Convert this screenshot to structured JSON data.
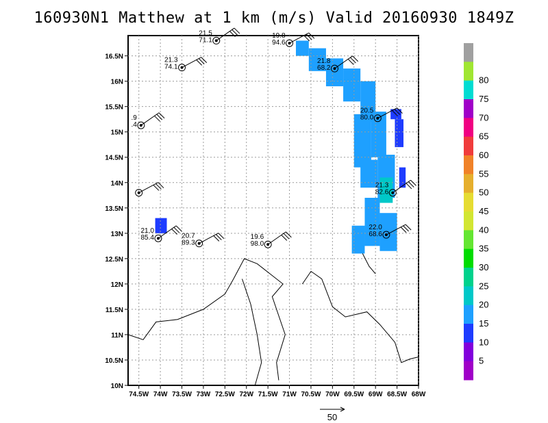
{
  "title": "160930N1 Matthew at 1 km (m/s) Valid 20160930 1849Z",
  "map": {
    "lon_range": [
      -74.75,
      -68.0
    ],
    "lat_range": [
      10.0,
      16.9
    ],
    "lon_ticks": [
      {
        "v": -74.5,
        "label": "74.5W"
      },
      {
        "v": -74.0,
        "label": "74W"
      },
      {
        "v": -73.5,
        "label": "73.5W"
      },
      {
        "v": -73.0,
        "label": "73W"
      },
      {
        "v": -72.5,
        "label": "72.5W"
      },
      {
        "v": -72.0,
        "label": "72W"
      },
      {
        "v": -71.5,
        "label": "71.5W"
      },
      {
        "v": -71.0,
        "label": "71W"
      },
      {
        "v": -70.5,
        "label": "70.5W"
      },
      {
        "v": -70.0,
        "label": "70W"
      },
      {
        "v": -69.5,
        "label": "69.5W"
      },
      {
        "v": -69.0,
        "label": "69W"
      },
      {
        "v": -68.5,
        "label": "68.5W"
      },
      {
        "v": -68.0,
        "label": "68W"
      }
    ],
    "lat_ticks": [
      {
        "v": 10.0,
        "label": "10N"
      },
      {
        "v": 10.5,
        "label": "10.5N"
      },
      {
        "v": 11.0,
        "label": "11N"
      },
      {
        "v": 11.5,
        "label": "11.5N"
      },
      {
        "v": 12.0,
        "label": "12N"
      },
      {
        "v": 12.5,
        "label": "12.5N"
      },
      {
        "v": 13.0,
        "label": "13N"
      },
      {
        "v": 13.5,
        "label": "13.5N"
      },
      {
        "v": 14.0,
        "label": "14N"
      },
      {
        "v": 14.5,
        "label": "14.5N"
      },
      {
        "v": 15.0,
        "label": "15N"
      },
      {
        "v": 15.5,
        "label": "15.5N"
      },
      {
        "v": 16.0,
        "label": "16N"
      },
      {
        "v": 16.5,
        "label": "16.5N"
      }
    ],
    "grid": true,
    "coastlines": [
      [
        [
          -74.75,
          11.0
        ],
        [
          -74.4,
          10.9
        ],
        [
          -74.1,
          11.25
        ],
        [
          -73.6,
          11.3
        ],
        [
          -73.0,
          11.5
        ],
        [
          -72.5,
          11.8
        ],
        [
          -72.3,
          12.1
        ],
        [
          -72.05,
          12.5
        ],
        [
          -71.75,
          12.4
        ],
        [
          -71.45,
          12.2
        ],
        [
          -71.15,
          12.0
        ],
        [
          -71.4,
          11.75
        ],
        [
          -71.1,
          11.0
        ],
        [
          -71.3,
          10.45
        ],
        [
          -71.25,
          10.1
        ]
      ],
      [
        [
          -71.8,
          10.0
        ],
        [
          -71.65,
          10.45
        ],
        [
          -71.75,
          11.0
        ],
        [
          -71.9,
          11.6
        ],
        [
          -72.1,
          12.1
        ]
      ],
      [
        [
          -70.7,
          12.0
        ],
        [
          -70.5,
          12.25
        ],
        [
          -70.25,
          12.1
        ],
        [
          -70.0,
          11.55
        ],
        [
          -69.7,
          11.35
        ],
        [
          -69.2,
          11.45
        ],
        [
          -68.9,
          11.2
        ],
        [
          -68.55,
          10.85
        ],
        [
          -68.4,
          10.45
        ],
        [
          -68.2,
          10.52
        ],
        [
          -68.0,
          10.56
        ]
      ],
      [
        [
          -69.3,
          12.6
        ],
        [
          -69.15,
          12.35
        ],
        [
          -69.0,
          12.2
        ]
      ]
    ],
    "vector_scale_label": "50"
  },
  "wind_field": {
    "units": "m/s",
    "swath_boxes": [
      {
        "lon": [
          -74.12,
          -73.85
        ],
        "lat": [
          13.0,
          13.3
        ],
        "speed": 12
      },
      {
        "lon": [
          -70.85,
          -70.55
        ],
        "lat": [
          16.5,
          16.8
        ],
        "speed": 18
      },
      {
        "lon": [
          -70.55,
          -70.15
        ],
        "lat": [
          16.2,
          16.65
        ],
        "speed": 17
      },
      {
        "lon": [
          -70.15,
          -69.75
        ],
        "lat": [
          15.9,
          16.45
        ],
        "speed": 17
      },
      {
        "lon": [
          -69.75,
          -69.35
        ],
        "lat": [
          15.6,
          16.25
        ],
        "speed": 16
      },
      {
        "lon": [
          -69.35,
          -69.0
        ],
        "lat": [
          15.2,
          16.0
        ],
        "speed": 17
      },
      {
        "lon": [
          -69.5,
          -69.1
        ],
        "lat": [
          14.3,
          15.35
        ],
        "speed": 16
      },
      {
        "lon": [
          -69.1,
          -68.75
        ],
        "lat": [
          14.5,
          15.4
        ],
        "speed": 17
      },
      {
        "lon": [
          -69.35,
          -68.95
        ],
        "lat": [
          13.9,
          14.45
        ],
        "speed": 16
      },
      {
        "lon": [
          -68.95,
          -68.55
        ],
        "lat": [
          13.7,
          14.55
        ],
        "speed": 17
      },
      {
        "lon": [
          -68.9,
          -68.6
        ],
        "lat": [
          13.6,
          14.1
        ],
        "speed": 22
      },
      {
        "lon": [
          -69.25,
          -68.9
        ],
        "lat": [
          12.75,
          13.7
        ],
        "speed": 16
      },
      {
        "lon": [
          -68.9,
          -68.5
        ],
        "lat": [
          12.65,
          13.4
        ],
        "speed": 17
      },
      {
        "lon": [
          -69.55,
          -69.25
        ],
        "lat": [
          12.6,
          13.15
        ],
        "speed": 15
      },
      {
        "lon": [
          -68.55,
          -68.35
        ],
        "lat": [
          14.7,
          15.25
        ],
        "speed": 11
      },
      {
        "lon": [
          -68.65,
          -68.4
        ],
        "lat": [
          15.25,
          15.45
        ],
        "speed": 11
      },
      {
        "lon": [
          -68.45,
          -68.3
        ],
        "lat": [
          13.9,
          14.3
        ],
        "speed": 13
      }
    ],
    "observations": [
      {
        "lon": -72.7,
        "lat": 16.8,
        "temp": "21.5",
        "rh": "71.1"
      },
      {
        "lon": -73.5,
        "lat": 16.27,
        "temp": "21.3",
        "rh": "74.1"
      },
      {
        "lon": -74.45,
        "lat": 15.13,
        "temp": ".9",
        "rh": ".4"
      },
      {
        "lon": -74.5,
        "lat": 13.8,
        "temp": "",
        "rh": ""
      },
      {
        "lon": -74.05,
        "lat": 12.9,
        "temp": "21.0",
        "rh": "85.4"
      },
      {
        "lon": -73.1,
        "lat": 12.8,
        "temp": "20.7",
        "rh": "89.3"
      },
      {
        "lon": -71.5,
        "lat": 12.78,
        "temp": "19.6",
        "rh": "98.0"
      },
      {
        "lon": -71.0,
        "lat": 16.75,
        "temp": "19.8",
        "rh": "94.6"
      },
      {
        "lon": -69.95,
        "lat": 16.25,
        "temp": "21.8",
        "rh": "68.2"
      },
      {
        "lon": -68.95,
        "lat": 15.27,
        "temp": "20.5",
        "rh": "80.0"
      },
      {
        "lon": -68.6,
        "lat": 13.8,
        "temp": "21.3",
        "rh": "82.6"
      },
      {
        "lon": -68.75,
        "lat": 12.97,
        "temp": "22.0",
        "rh": "68.6"
      }
    ]
  },
  "colorbar": {
    "levels": [
      {
        "label": "",
        "color": "#a0a0a0"
      },
      {
        "label": "80",
        "color": "#a0e632"
      },
      {
        "label": "75",
        "color": "#00dcd2"
      },
      {
        "label": "70",
        "color": "#a000c8"
      },
      {
        "label": "65",
        "color": "#f00082"
      },
      {
        "label": "60",
        "color": "#f03c3c"
      },
      {
        "label": "55",
        "color": "#f08228"
      },
      {
        "label": "50",
        "color": "#e6af2d"
      },
      {
        "label": "45",
        "color": "#e6dc32"
      },
      {
        "label": "40",
        "color": "#d2e632"
      },
      {
        "label": "35",
        "color": "#64e632"
      },
      {
        "label": "30",
        "color": "#00dc00"
      },
      {
        "label": "25",
        "color": "#00d28c"
      },
      {
        "label": "20",
        "color": "#00c8c8"
      },
      {
        "label": "15",
        "color": "#1ea0ff"
      },
      {
        "label": "10",
        "color": "#1e3cff"
      },
      {
        "label": "5",
        "color": "#8200dc"
      },
      {
        "label": "",
        "color": "#a000c8"
      }
    ]
  }
}
